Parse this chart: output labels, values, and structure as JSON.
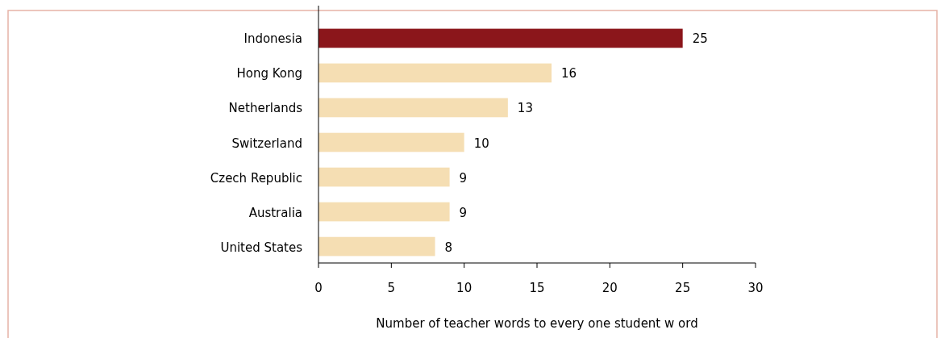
{
  "chart_data": {
    "type": "bar",
    "orientation": "horizontal",
    "xlabel": "Number of teacher words to every one student w ord",
    "categories": [
      "Indonesia",
      "Hong Kong",
      "Netherlands",
      "Switzerland",
      "Czech Republic",
      "Australia",
      "United States"
    ],
    "values": [
      25,
      16,
      13,
      10,
      9,
      9,
      8
    ],
    "colors": [
      "#8b161b",
      "#f5deb3",
      "#f5deb3",
      "#f5deb3",
      "#f5deb3",
      "#f5deb3",
      "#f5deb3"
    ],
    "xlim": [
      0,
      30
    ],
    "xticks": [
      0,
      5,
      10,
      15,
      20,
      25,
      30
    ],
    "data_labels": true
  }
}
